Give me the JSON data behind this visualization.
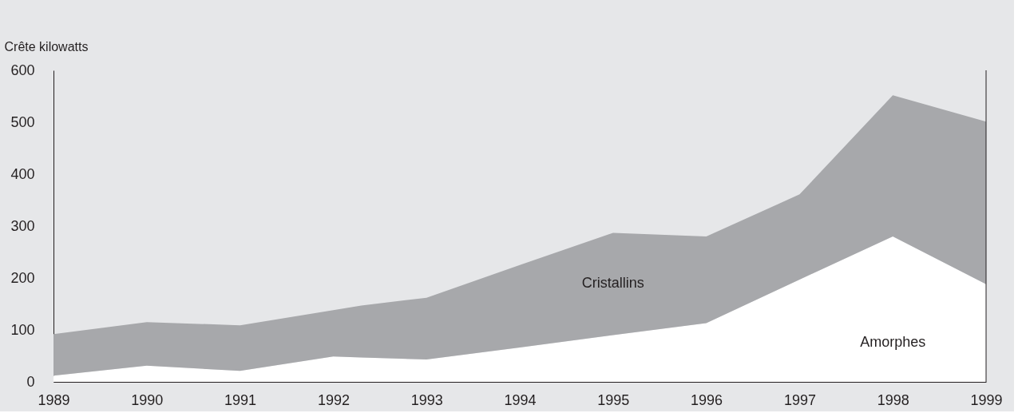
{
  "chart_data": {
    "type": "area",
    "ylabel": "Crête kilowatts",
    "stacked": true,
    "x": [
      1989,
      1990,
      1991,
      1992,
      1992.3,
      1993,
      1994,
      1995,
      1996,
      1997,
      1998,
      1999
    ],
    "series": [
      {
        "name": "Amorphes",
        "color": "#ffffff",
        "values": [
          12,
          31,
          21,
          49,
          47,
          43,
          66,
          90,
          113,
          197,
          280,
          188
        ]
      },
      {
        "name": "Cristallins",
        "color": "#a7a8ab",
        "values": [
          80,
          84,
          88,
          89,
          100,
          119,
          159,
          197,
          167,
          164,
          272,
          313
        ]
      }
    ],
    "xlim": [
      1989,
      1999
    ],
    "xticks": [
      1989,
      1990,
      1991,
      1992,
      1993,
      1994,
      1995,
      1996,
      1997,
      1998,
      1999
    ],
    "ylim": [
      0,
      600
    ],
    "yticks": [
      0,
      100,
      200,
      300,
      400,
      500,
      600
    ],
    "grid": false,
    "legend": false
  }
}
